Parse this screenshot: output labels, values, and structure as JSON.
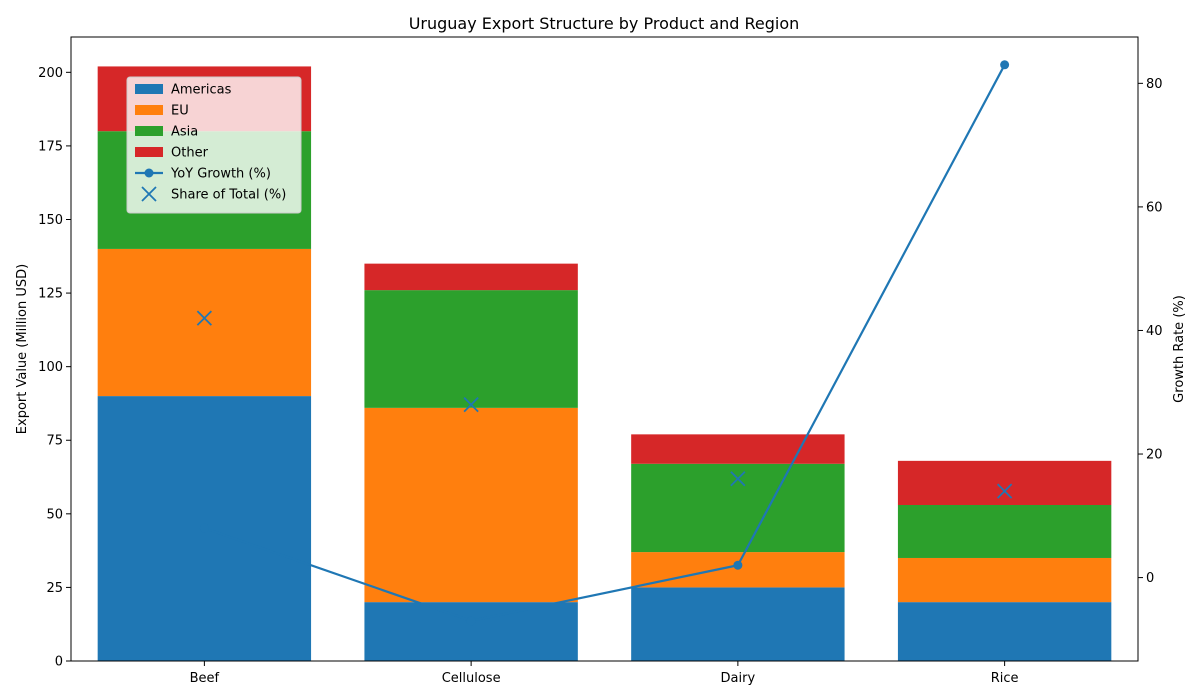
{
  "chart_data": {
    "type": "bar",
    "title": "Uruguay Export Structure by Product and Region",
    "categories": [
      "Beef",
      "Cellulose",
      "Dairy",
      "Rice"
    ],
    "ylabel": "Export Value (Million USD)",
    "y2label": "Growth Rate (%)",
    "ylim": [
      0,
      212
    ],
    "y2lim": [
      -13.5,
      87.5
    ],
    "yticks": [
      0,
      25,
      50,
      75,
      100,
      125,
      150,
      175,
      200
    ],
    "y2ticks": [
      0,
      20,
      40,
      60,
      80
    ],
    "stacked": true,
    "series": [
      {
        "name": "Americas",
        "color": "#1f77b4",
        "values": [
          90,
          20,
          25,
          20
        ]
      },
      {
        "name": "EU",
        "color": "#ff7f0e",
        "values": [
          50,
          66,
          12,
          15
        ]
      },
      {
        "name": "Asia",
        "color": "#2ca02c",
        "values": [
          40,
          40,
          30,
          18
        ]
      },
      {
        "name": "Other",
        "color": "#d62728",
        "values": [
          22,
          9,
          10,
          15
        ]
      }
    ],
    "lines": [
      {
        "name": "YoY Growth (%)",
        "axis": "right",
        "color": "#1f77b4",
        "style": "line-with-circle-markers",
        "values": [
          8,
          -7,
          2,
          83
        ]
      }
    ],
    "markers": [
      {
        "name": "Share of Total (%)",
        "axis": "right",
        "color": "#1f77b4",
        "style": "x",
        "values": [
          42,
          28,
          16,
          14
        ]
      }
    ],
    "legend_position": "top-left",
    "grid": false
  }
}
